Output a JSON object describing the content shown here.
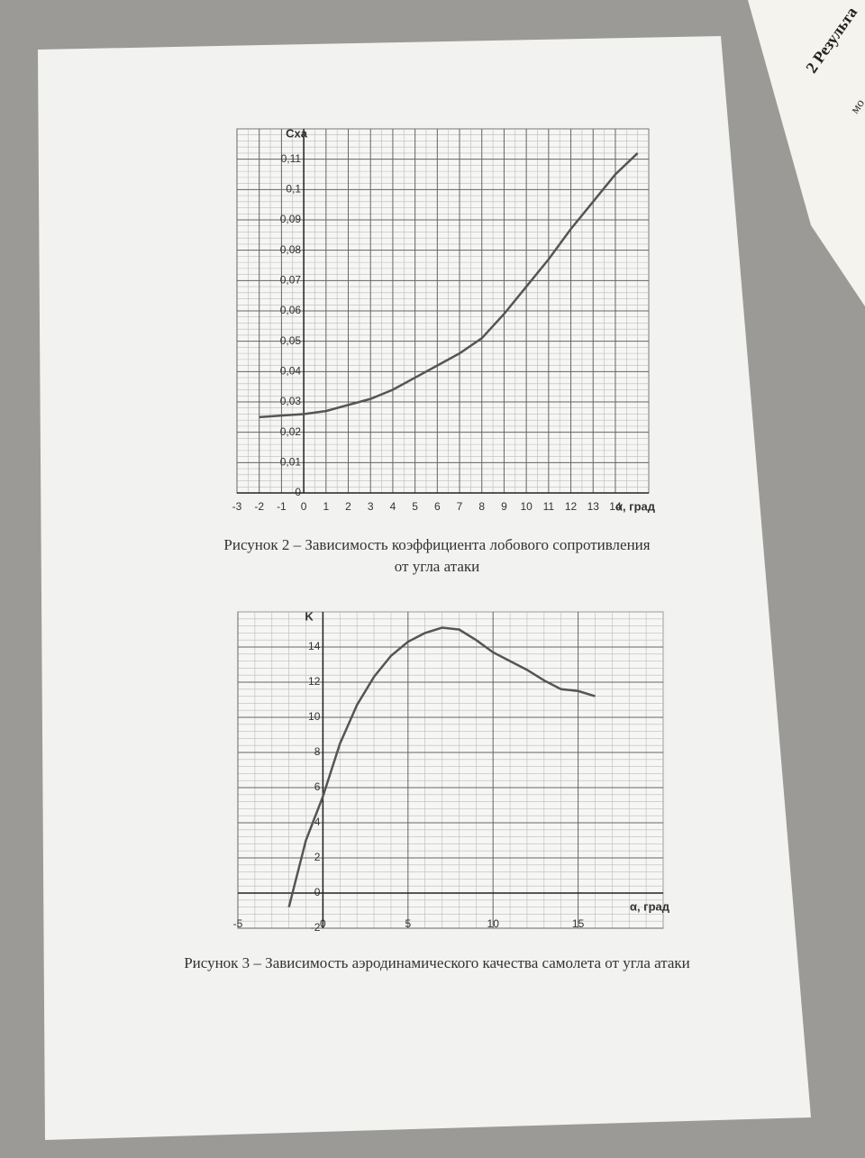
{
  "chart_data": [
    {
      "type": "line",
      "y_label": "Cxa",
      "x_label": "α, град",
      "x": [
        -2,
        -1,
        0,
        1,
        2,
        3,
        4,
        5,
        6,
        7,
        8,
        9,
        10,
        11,
        12,
        13,
        14,
        15
      ],
      "values": [
        0.025,
        0.0255,
        0.026,
        0.027,
        0.029,
        0.031,
        0.034,
        0.038,
        0.042,
        0.046,
        0.051,
        0.059,
        0.068,
        0.077,
        0.087,
        0.096,
        0.105,
        0.112
      ],
      "color": "#555555",
      "xlim": [
        -3,
        15.5
      ],
      "ylim": [
        0,
        0.12
      ],
      "xticks": [
        -3,
        -2,
        -1,
        0,
        1,
        2,
        3,
        4,
        5,
        6,
        7,
        8,
        9,
        10,
        11,
        12,
        13,
        14
      ],
      "yticks": [
        0,
        {
          "value": 0.01,
          "label": "0,01"
        },
        {
          "value": 0.02,
          "label": "0,02"
        },
        {
          "value": 0.03,
          "label": "0,03"
        },
        {
          "value": 0.04,
          "label": "0,04"
        },
        {
          "value": 0.05,
          "label": "0,05"
        },
        {
          "value": 0.06,
          "label": "0,06"
        },
        {
          "value": 0.07,
          "label": "0,07"
        },
        {
          "value": 0.08,
          "label": "0,08"
        },
        {
          "value": 0.09,
          "label": "0,09"
        },
        {
          "value": 0.1,
          "label": "0,1"
        },
        {
          "value": 0.11,
          "label": "0,11"
        }
      ],
      "grid": true,
      "caption_lines": [
        "Рисунок 2 – Зависимость коэффициента лобового сопротивления",
        "от угла атаки"
      ]
    },
    {
      "type": "line",
      "y_label": "K",
      "x_label": "α, град",
      "x": [
        -2,
        -1,
        0,
        1,
        2,
        3,
        4,
        5,
        6,
        7,
        8,
        9,
        10,
        11,
        12,
        13,
        14,
        15,
        16
      ],
      "values": [
        -0.8,
        3,
        5.5,
        8.5,
        10.7,
        12.3,
        13.5,
        14.3,
        14.8,
        15.1,
        15,
        14.4,
        13.7,
        13.2,
        12.7,
        12.1,
        11.6,
        11.5,
        11.2
      ],
      "color": "#555555",
      "xlim": [
        -5,
        20
      ],
      "ylim": [
        -2,
        16
      ],
      "xticks": [
        -5,
        0,
        5,
        10,
        15
      ],
      "yticks": [
        -2,
        0,
        2,
        4,
        6,
        8,
        10,
        12,
        14
      ],
      "grid": true,
      "caption_lines": [
        "Рисунок 3 – Зависимость аэродинамического качества самолета от угла атаки"
      ]
    }
  ],
  "side_page": {
    "heading": "2 Результа",
    "line": "мо"
  }
}
